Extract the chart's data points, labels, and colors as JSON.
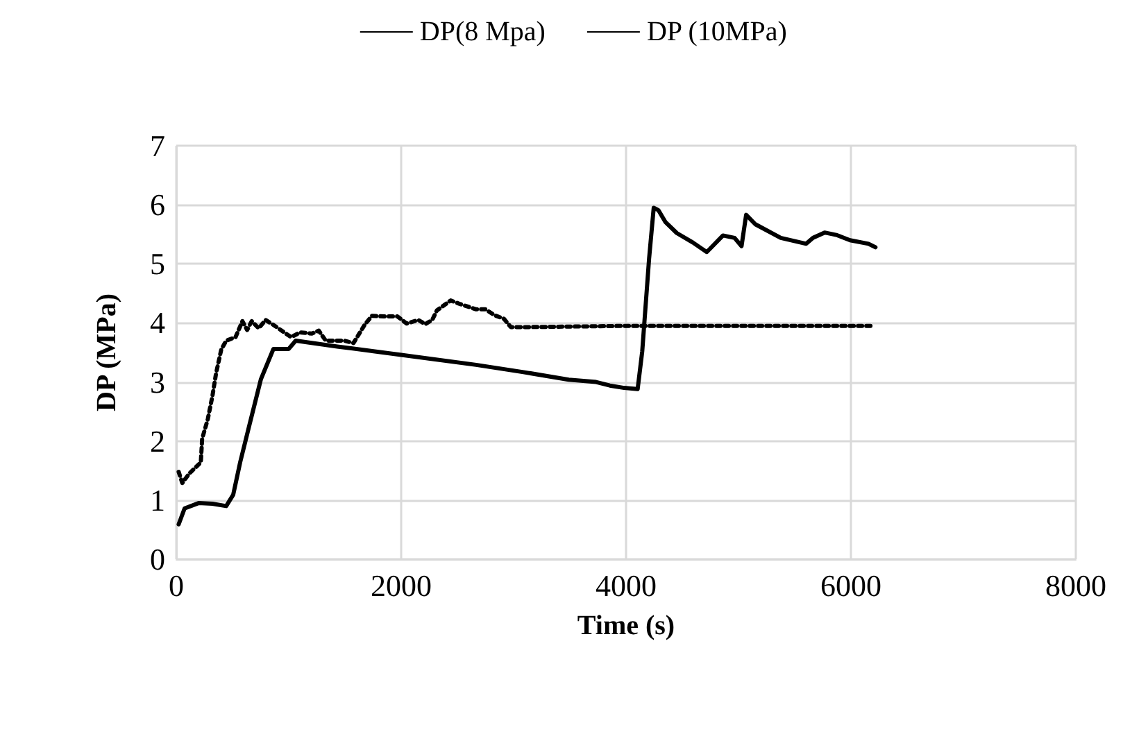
{
  "chart_data": {
    "type": "line",
    "xlabel": "Time (s)",
    "ylabel": "DP (MPa)",
    "xlim": [
      0,
      8000
    ],
    "xticks": [
      0,
      2000,
      4000,
      6000,
      8000
    ],
    "ylim": [
      0,
      7
    ],
    "yticks": [
      0,
      1,
      2,
      3,
      4,
      5,
      6,
      7
    ],
    "grid": true,
    "legend": "top",
    "marker": "none",
    "series": [
      {
        "name": "DP(8 Mpa)",
        "color": "#000000",
        "line_style": "solid",
        "x": [
          21,
          74,
          198,
          321,
          444,
          506,
          568,
          650,
          753,
          864,
          1000,
          1062,
          1432,
          2000,
          2667,
          3078,
          3490,
          3733,
          3856,
          3984,
          4103,
          4144,
          4205,
          4246,
          4287,
          4349,
          4452,
          4595,
          4718,
          4862,
          4965,
          5027,
          5068,
          5150,
          5376,
          5602,
          5663,
          5766,
          5869,
          5992,
          6156,
          6218
        ],
        "values": [
          0.59,
          0.86,
          0.95,
          0.94,
          0.9,
          1.09,
          1.64,
          2.27,
          3.05,
          3.56,
          3.56,
          3.7,
          3.6,
          3.46,
          3.29,
          3.17,
          3.04,
          3.0,
          2.94,
          2.9,
          2.88,
          3.52,
          5.09,
          5.95,
          5.91,
          5.71,
          5.52,
          5.36,
          5.2,
          5.48,
          5.44,
          5.3,
          5.83,
          5.67,
          5.44,
          5.34,
          5.44,
          5.53,
          5.49,
          5.4,
          5.34,
          5.28
        ]
      },
      {
        "name": "DP (10MPa)",
        "color": "#000000",
        "line_style": "dotted",
        "x": [
          21,
          53,
          115,
          218,
          230,
          280,
          321,
          354,
          400,
          444,
          527,
          588,
          630,
          671,
          733,
          794,
          877,
          959,
          1021,
          1103,
          1206,
          1267,
          1329,
          1494,
          1576,
          1679,
          1741,
          1844,
          1967,
          2049,
          2152,
          2214,
          2276,
          2317,
          2440,
          2523,
          2667,
          2749,
          2831,
          2914,
          2975,
          3160,
          4000,
          5000,
          6185
        ],
        "values": [
          1.48,
          1.29,
          1.45,
          1.64,
          2.04,
          2.37,
          2.76,
          3.15,
          3.55,
          3.7,
          3.76,
          4.03,
          3.88,
          4.03,
          3.91,
          4.05,
          3.95,
          3.84,
          3.76,
          3.84,
          3.82,
          3.87,
          3.7,
          3.7,
          3.66,
          3.98,
          4.12,
          4.11,
          4.11,
          3.99,
          4.05,
          3.98,
          4.05,
          4.21,
          4.38,
          4.32,
          4.23,
          4.23,
          4.13,
          4.07,
          3.93,
          3.93,
          3.95,
          3.95,
          3.95
        ]
      }
    ]
  }
}
